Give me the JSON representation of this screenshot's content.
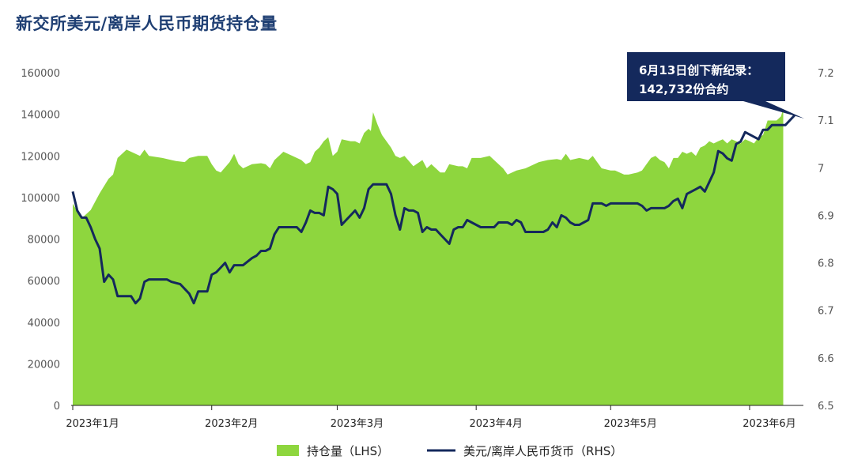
{
  "title": "新交所美元/离岸人民币期货持仓量",
  "colors": {
    "area": "#8ed63e",
    "line": "#14295c",
    "title": "#1f3f73",
    "callout_bg": "#14295c"
  },
  "callout": {
    "line1": "6月13日创下新纪录：",
    "line2": "142,732份合约"
  },
  "chart_data": {
    "type": "area+line",
    "title": "新交所美元/离岸人民币期货持仓量",
    "x_tick_labels": [
      "2023年1月",
      "2023年2月",
      "2023年3月",
      "2023年4月",
      "2023年5月",
      "2023年6月"
    ],
    "x_tick_days": [
      0,
      31,
      59,
      90,
      120,
      151
    ],
    "x_range_days": [
      0,
      163
    ],
    "left_axis": {
      "ticks": [
        "0",
        "20000",
        "40000",
        "60000",
        "80000",
        "100000",
        "120000",
        "140000",
        "160000"
      ],
      "range": [
        0,
        160000
      ]
    },
    "right_axis": {
      "ticks": [
        "6.5",
        "6.6",
        "6.7",
        "6.8",
        "6.9",
        "7",
        "7.1",
        "7.2"
      ],
      "range": [
        6.5,
        7.2
      ]
    },
    "series": [
      {
        "name": "持仓量（LHS）",
        "axis": "left",
        "type": "area",
        "points": [
          [
            0,
            97000
          ],
          [
            2,
            90000
          ],
          [
            4,
            94000
          ],
          [
            6,
            102000
          ],
          [
            8,
            109000
          ],
          [
            9,
            111000
          ],
          [
            10,
            119000
          ],
          [
            12,
            123000
          ],
          [
            14,
            121000
          ],
          [
            15,
            120000
          ],
          [
            16,
            123000
          ],
          [
            17,
            120000
          ],
          [
            20,
            119000
          ],
          [
            22,
            118000
          ],
          [
            23,
            117500
          ],
          [
            25,
            117000
          ],
          [
            26,
            119000
          ],
          [
            28,
            120000
          ],
          [
            30,
            120000
          ],
          [
            31,
            116000
          ],
          [
            32,
            113000
          ],
          [
            33,
            112000
          ],
          [
            35,
            117000
          ],
          [
            36,
            121000
          ],
          [
            37,
            116000
          ],
          [
            38,
            114000
          ],
          [
            40,
            116000
          ],
          [
            42,
            116500
          ],
          [
            43,
            116000
          ],
          [
            44,
            114000
          ],
          [
            45,
            118000
          ],
          [
            46,
            120000
          ],
          [
            47,
            122000
          ],
          [
            49,
            120000
          ],
          [
            51,
            118000
          ],
          [
            52,
            116000
          ],
          [
            53,
            117000
          ],
          [
            54,
            122000
          ],
          [
            55,
            124000
          ],
          [
            56,
            127000
          ],
          [
            57,
            129000
          ],
          [
            58,
            120000
          ],
          [
            59,
            122000
          ],
          [
            60,
            128000
          ],
          [
            62,
            127000
          ],
          [
            63,
            127000
          ],
          [
            64,
            126000
          ],
          [
            65,
            131000
          ],
          [
            66,
            133000
          ],
          [
            66.5,
            132000
          ],
          [
            67,
            141000
          ],
          [
            68,
            135000
          ],
          [
            69,
            130000
          ],
          [
            71,
            124000
          ],
          [
            72,
            120000
          ],
          [
            73,
            119000
          ],
          [
            74,
            120000
          ],
          [
            76,
            115000
          ],
          [
            78,
            118000
          ],
          [
            79,
            114000
          ],
          [
            80,
            116000
          ],
          [
            82,
            112000
          ],
          [
            83,
            112000
          ],
          [
            84,
            116000
          ],
          [
            86,
            115000
          ],
          [
            87,
            115000
          ],
          [
            88,
            114000
          ],
          [
            89,
            119000
          ],
          [
            91,
            119000
          ],
          [
            93,
            120000
          ],
          [
            95,
            116000
          ],
          [
            96,
            114000
          ],
          [
            97,
            111000
          ],
          [
            99,
            113000
          ],
          [
            101,
            114000
          ],
          [
            102,
            115000
          ],
          [
            104,
            117000
          ],
          [
            106,
            118000
          ],
          [
            108,
            118500
          ],
          [
            109,
            118000
          ],
          [
            110,
            121000
          ],
          [
            111,
            118000
          ],
          [
            113,
            119000
          ],
          [
            115,
            118000
          ],
          [
            116,
            120000
          ],
          [
            117,
            117000
          ],
          [
            118,
            114000
          ],
          [
            120,
            113000
          ],
          [
            121,
            113000
          ],
          [
            123,
            111000
          ],
          [
            124,
            111000
          ],
          [
            126,
            112000
          ],
          [
            127,
            113000
          ],
          [
            128,
            116000
          ],
          [
            129,
            119000
          ],
          [
            130,
            120000
          ],
          [
            131,
            118000
          ],
          [
            132,
            117000
          ],
          [
            133,
            114000
          ],
          [
            134,
            119000
          ],
          [
            135,
            119000
          ],
          [
            136,
            122000
          ],
          [
            137,
            121000
          ],
          [
            138,
            122000
          ],
          [
            139,
            120000
          ],
          [
            140,
            124000
          ],
          [
            141,
            125000
          ],
          [
            142,
            127000
          ],
          [
            143,
            126000
          ],
          [
            144,
            127000
          ],
          [
            145,
            128000
          ],
          [
            146,
            126000
          ],
          [
            147,
            128000
          ],
          [
            148,
            127000
          ],
          [
            149,
            126000
          ],
          [
            150,
            128000
          ],
          [
            151,
            127000
          ],
          [
            152,
            126000
          ],
          [
            153,
            129000
          ],
          [
            154,
            130000
          ],
          [
            155,
            137000
          ],
          [
            156,
            137000
          ],
          [
            157,
            137000
          ],
          [
            158,
            139000
          ],
          [
            158.5,
            142732
          ]
        ]
      },
      {
        "name": "美元/离岸人民币货币（RHS）",
        "axis": "right",
        "type": "line",
        "points": [
          [
            0,
            6.95
          ],
          [
            1,
            6.91
          ],
          [
            2,
            6.895
          ],
          [
            3,
            6.895
          ],
          [
            4,
            6.875
          ],
          [
            5,
            6.85
          ],
          [
            6,
            6.83
          ],
          [
            7,
            6.76
          ],
          [
            8,
            6.775
          ],
          [
            9,
            6.765
          ],
          [
            10,
            6.73
          ],
          [
            11,
            6.73
          ],
          [
            12,
            6.73
          ],
          [
            13,
            6.73
          ],
          [
            14,
            6.715
          ],
          [
            15,
            6.725
          ],
          [
            16,
            6.76
          ],
          [
            17,
            6.765
          ],
          [
            18,
            6.765
          ],
          [
            19,
            6.765
          ],
          [
            20,
            6.765
          ],
          [
            21,
            6.765
          ],
          [
            22,
            6.76
          ],
          [
            24,
            6.755
          ],
          [
            26,
            6.735
          ],
          [
            27,
            6.715
          ],
          [
            28,
            6.74
          ],
          [
            29,
            6.74
          ],
          [
            30,
            6.74
          ],
          [
            31,
            6.775
          ],
          [
            32,
            6.78
          ],
          [
            33,
            6.79
          ],
          [
            34,
            6.8
          ],
          [
            35,
            6.78
          ],
          [
            36,
            6.795
          ],
          [
            37,
            6.795
          ],
          [
            38,
            6.795
          ],
          [
            40,
            6.81
          ],
          [
            41,
            6.815
          ],
          [
            42,
            6.825
          ],
          [
            43,
            6.825
          ],
          [
            44,
            6.83
          ],
          [
            45,
            6.86
          ],
          [
            46,
            6.875
          ],
          [
            47,
            6.875
          ],
          [
            48,
            6.875
          ],
          [
            49,
            6.875
          ],
          [
            50,
            6.875
          ],
          [
            51,
            6.865
          ],
          [
            52,
            6.885
          ],
          [
            53,
            6.91
          ],
          [
            54,
            6.905
          ],
          [
            55,
            6.905
          ],
          [
            56,
            6.9
          ],
          [
            57,
            6.96
          ],
          [
            58,
            6.955
          ],
          [
            59,
            6.945
          ],
          [
            60,
            6.88
          ],
          [
            61,
            6.89
          ],
          [
            62,
            6.9
          ],
          [
            63,
            6.91
          ],
          [
            64,
            6.895
          ],
          [
            65,
            6.915
          ],
          [
            66,
            6.955
          ],
          [
            67,
            6.965
          ],
          [
            68,
            6.965
          ],
          [
            69,
            6.965
          ],
          [
            70,
            6.965
          ],
          [
            71,
            6.945
          ],
          [
            72,
            6.9
          ],
          [
            73,
            6.87
          ],
          [
            74,
            6.915
          ],
          [
            75,
            6.91
          ],
          [
            76,
            6.91
          ],
          [
            77,
            6.905
          ],
          [
            78,
            6.865
          ],
          [
            79,
            6.875
          ],
          [
            80,
            6.87
          ],
          [
            81,
            6.87
          ],
          [
            82,
            6.86
          ],
          [
            83,
            6.85
          ],
          [
            84,
            6.84
          ],
          [
            85,
            6.87
          ],
          [
            86,
            6.875
          ],
          [
            87,
            6.875
          ],
          [
            88,
            6.89
          ],
          [
            89,
            6.885
          ],
          [
            90,
            6.88
          ],
          [
            91,
            6.875
          ],
          [
            92,
            6.875
          ],
          [
            93,
            6.875
          ],
          [
            94,
            6.875
          ],
          [
            95,
            6.885
          ],
          [
            96,
            6.885
          ],
          [
            97,
            6.885
          ],
          [
            98,
            6.88
          ],
          [
            99,
            6.89
          ],
          [
            100,
            6.885
          ],
          [
            101,
            6.865
          ],
          [
            102,
            6.865
          ],
          [
            103,
            6.865
          ],
          [
            104,
            6.865
          ],
          [
            105,
            6.865
          ],
          [
            106,
            6.87
          ],
          [
            107,
            6.885
          ],
          [
            108,
            6.875
          ],
          [
            109,
            6.9
          ],
          [
            110,
            6.895
          ],
          [
            111,
            6.885
          ],
          [
            112,
            6.88
          ],
          [
            113,
            6.88
          ],
          [
            114,
            6.885
          ],
          [
            115,
            6.89
          ],
          [
            116,
            6.925
          ],
          [
            117,
            6.925
          ],
          [
            118,
            6.925
          ],
          [
            119,
            6.92
          ],
          [
            120,
            6.925
          ],
          [
            121,
            6.925
          ],
          [
            122,
            6.925
          ],
          [
            123,
            6.925
          ],
          [
            124,
            6.925
          ],
          [
            125,
            6.925
          ],
          [
            126,
            6.925
          ],
          [
            127,
            6.92
          ],
          [
            128,
            6.91
          ],
          [
            129,
            6.915
          ],
          [
            130,
            6.915
          ],
          [
            131,
            6.915
          ],
          [
            132,
            6.915
          ],
          [
            133,
            6.92
          ],
          [
            134,
            6.93
          ],
          [
            135,
            6.935
          ],
          [
            136,
            6.915
          ],
          [
            137,
            6.945
          ],
          [
            138,
            6.95
          ],
          [
            139,
            6.955
          ],
          [
            140,
            6.96
          ],
          [
            141,
            6.95
          ],
          [
            142,
            6.97
          ],
          [
            143,
            6.99
          ],
          [
            144,
            7.035
          ],
          [
            145,
            7.03
          ],
          [
            146,
            7.02
          ],
          [
            147,
            7.015
          ],
          [
            148,
            7.05
          ],
          [
            149,
            7.055
          ],
          [
            150,
            7.075
          ],
          [
            151,
            7.07
          ],
          [
            152,
            7.065
          ],
          [
            153,
            7.06
          ],
          [
            154,
            7.08
          ],
          [
            155,
            7.08
          ],
          [
            156,
            7.09
          ],
          [
            157,
            7.09
          ],
          [
            158,
            7.09
          ],
          [
            159,
            7.09
          ],
          [
            160,
            7.1
          ],
          [
            161,
            7.11
          ]
        ]
      }
    ],
    "legend_position": "bottom"
  }
}
